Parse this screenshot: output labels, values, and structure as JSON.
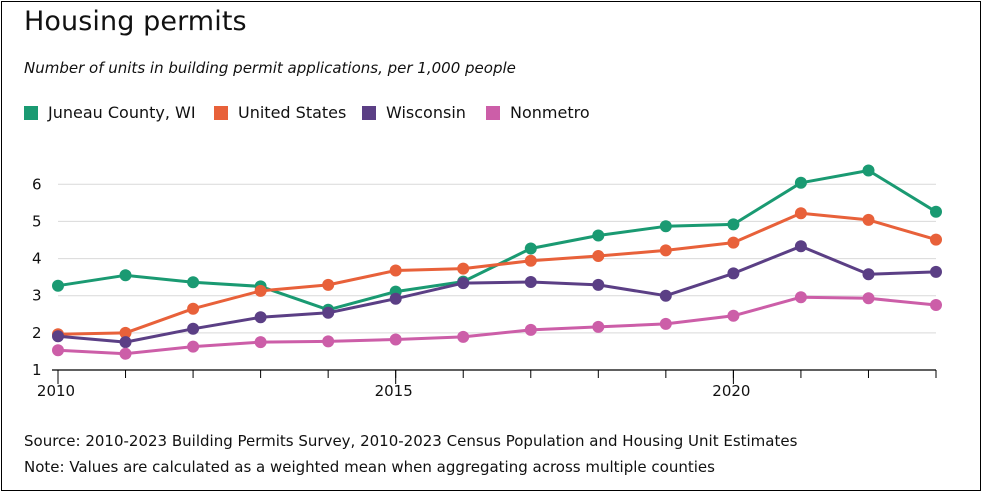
{
  "title": "Housing permits",
  "subtitle": "Number of units in building permit applications, per 1,000 people",
  "colors": {
    "juneau": "#1a9a72",
    "us": "#e8613a",
    "wisconsin": "#5b3f85",
    "nonmetro": "#cc5ea8",
    "grid": "#d9d9d9",
    "axis": "#000000"
  },
  "legend": [
    {
      "label": "Juneau County, WI",
      "color": "#1a9a72"
    },
    {
      "label": "United States",
      "color": "#e8613a"
    },
    {
      "label": "Wisconsin",
      "color": "#5b3f85"
    },
    {
      "label": "Nonmetro",
      "color": "#cc5ea8"
    }
  ],
  "chart_data": {
    "type": "line",
    "title": "Housing permits",
    "subtitle": "Number of units in building permit applications, per 1,000 people",
    "xlabel": "",
    "ylabel": "",
    "x": [
      2010,
      2011,
      2012,
      2013,
      2014,
      2015,
      2016,
      2017,
      2018,
      2019,
      2020,
      2021,
      2022,
      2023
    ],
    "xlim": [
      2010,
      2023
    ],
    "ylim": [
      1,
      6.6
    ],
    "x_ticks": [
      2010,
      2015,
      2020
    ],
    "y_ticks": [
      1,
      2,
      3,
      4,
      5,
      6
    ],
    "grid": "horizontal",
    "legend_position": "top-left",
    "series": [
      {
        "name": "Juneau County, WI",
        "color": "#1a9a72",
        "values": [
          3.27,
          3.55,
          3.36,
          3.25,
          2.62,
          3.11,
          3.38,
          4.27,
          4.62,
          4.87,
          4.92,
          6.04,
          6.37,
          5.26
        ]
      },
      {
        "name": "United States",
        "color": "#e8613a",
        "values": [
          1.96,
          2.0,
          2.65,
          3.13,
          3.29,
          3.68,
          3.73,
          3.94,
          4.07,
          4.22,
          4.43,
          5.22,
          5.04,
          4.51
        ]
      },
      {
        "name": "Wisconsin",
        "color": "#5b3f85",
        "values": [
          1.91,
          1.75,
          2.11,
          2.42,
          2.54,
          2.92,
          3.34,
          3.37,
          3.29,
          3.0,
          3.6,
          4.33,
          3.58,
          3.64
        ]
      },
      {
        "name": "Nonmetro",
        "color": "#cc5ea8",
        "values": [
          1.53,
          1.44,
          1.63,
          1.75,
          1.77,
          1.82,
          1.89,
          2.08,
          2.16,
          2.24,
          2.46,
          2.96,
          2.93,
          2.75
        ]
      }
    ]
  },
  "footnotes": {
    "source": "Source: 2010-2023 Building Permits Survey, 2010-2023 Census Population and Housing Unit Estimates",
    "note": "Note: Values are calculated as a weighted mean when aggregating across multiple counties"
  }
}
